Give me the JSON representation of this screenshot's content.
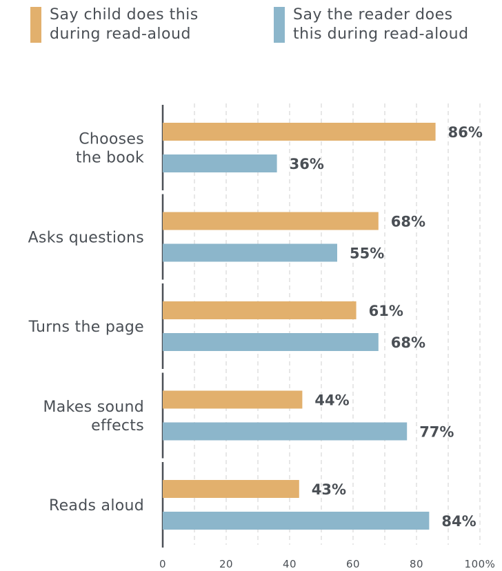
{
  "legend": [
    {
      "label": "Say child does this\nduring read-aloud",
      "color": "#e2b06d"
    },
    {
      "label": "Say the reader does\nthis during read-aloud",
      "color": "#8cb6cb"
    }
  ],
  "colors": {
    "child": "#e2b06d",
    "reader": "#8cb6cb",
    "axis": "#4a4f55",
    "grid": "#cfcfcf"
  },
  "chart_data": {
    "type": "bar",
    "orientation": "horizontal",
    "categories": [
      "Chooses\nthe book",
      "Asks questions",
      "Turns the page",
      "Makes sound\neffects",
      "Reads aloud"
    ],
    "series": [
      {
        "name": "Say child does this during read-aloud",
        "values": [
          86,
          68,
          61,
          44,
          43
        ],
        "labels": [
          "86%",
          "68%",
          "61%",
          "44%",
          "43%"
        ]
      },
      {
        "name": "Say the reader does this during read-aloud",
        "values": [
          36,
          55,
          68,
          77,
          84
        ],
        "labels": [
          "36%",
          "55%",
          "68%",
          "77%",
          "84%"
        ]
      }
    ],
    "xlim": [
      0,
      100
    ],
    "xticks": [
      0,
      20,
      40,
      60,
      80,
      100
    ],
    "xtick_labels": [
      "0",
      "20",
      "40",
      "60",
      "80",
      "100%"
    ],
    "grid": true,
    "legend_position": "top"
  }
}
